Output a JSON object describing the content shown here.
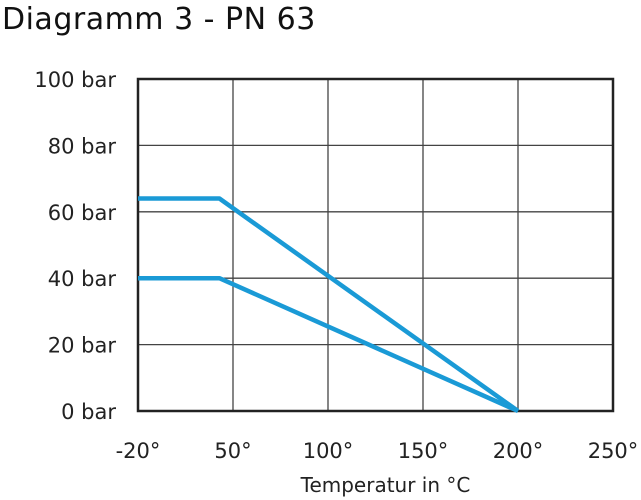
{
  "chart_data": {
    "type": "line",
    "title": "Diagramm 3 - PN 63",
    "xlabel": "Temperatur in °C",
    "ylabel": "",
    "x_ticks": [
      -20,
      50,
      100,
      150,
      200,
      250
    ],
    "x_tick_labels": [
      "-20°",
      "50°",
      "100°",
      "150°",
      "200°",
      "250°"
    ],
    "y_ticks": [
      0,
      20,
      40,
      60,
      80,
      100
    ],
    "y_tick_labels": [
      "0 bar",
      "20 bar",
      "40 bar",
      "60 bar",
      "80 bar",
      "100 bar"
    ],
    "xlim": [
      -20,
      250
    ],
    "ylim": [
      0,
      100
    ],
    "grid": true,
    "x_axis_note": "tick spacing equal between labels (non-linear first interval)",
    "series_color": "#1a9ad6",
    "series": [
      {
        "x": [
          -20,
          40,
          200
        ],
        "y": [
          64,
          64,
          0
        ]
      },
      {
        "x": [
          -20,
          40,
          200
        ],
        "y": [
          40,
          40,
          0
        ]
      }
    ]
  }
}
